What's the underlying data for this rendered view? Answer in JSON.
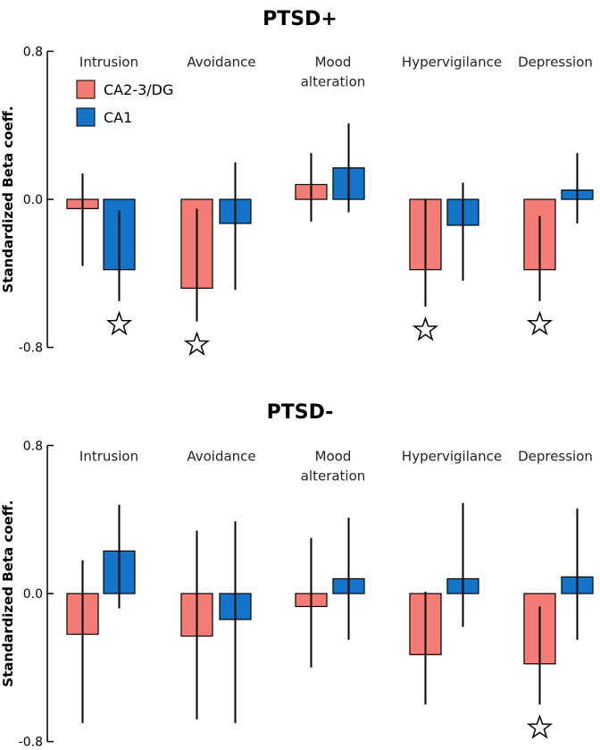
{
  "colors": {
    "ca23dg": "#F47C74",
    "ca1": "#1474C8",
    "axis": "#000000"
  },
  "legend": [
    {
      "label": "CA2-3/DG",
      "color": "#F47C74"
    },
    {
      "label": "CA1",
      "color": "#1474C8"
    }
  ],
  "chart_data": [
    {
      "type": "bar",
      "title": "PTSD+",
      "ylabel": "Standardized Beta coeff.",
      "ylim": [
        -0.8,
        0.8
      ],
      "yticks": [
        "0.8",
        "0.0",
        "-0.8"
      ],
      "ytick_values": [
        0.8,
        0.0,
        -0.8
      ],
      "categories": [
        [
          "Intrusion"
        ],
        [
          "Avoidance"
        ],
        [
          "Mood",
          "alteration"
        ],
        [
          "Hypervigilance"
        ],
        [
          "Depression"
        ]
      ],
      "series": [
        {
          "name": "CA2-3/DG",
          "values": [
            -0.05,
            -0.48,
            0.08,
            -0.38,
            -0.38
          ],
          "ci_low": [
            -0.36,
            -0.66,
            -0.12,
            -0.58,
            -0.55
          ],
          "ci_high": [
            0.14,
            -0.05,
            0.25,
            0.0,
            -0.09
          ]
        },
        {
          "name": "CA1",
          "values": [
            -0.38,
            -0.13,
            0.17,
            -0.14,
            0.05
          ],
          "ci_low": [
            -0.55,
            -0.49,
            -0.07,
            -0.44,
            -0.13
          ],
          "ci_high": [
            -0.06,
            0.2,
            0.41,
            0.09,
            0.25
          ]
        }
      ],
      "significant": [
        {
          "category": 0,
          "series": 1
        },
        {
          "category": 1,
          "series": 0
        },
        {
          "category": 3,
          "series": 0
        },
        {
          "category": 4,
          "series": 0
        }
      ]
    },
    {
      "type": "bar",
      "title": "PTSD-",
      "ylabel": "Standardized Beta coeff.",
      "ylim": [
        -0.8,
        0.8
      ],
      "yticks": [
        "0.8",
        "0.0",
        "-0.8"
      ],
      "ytick_values": [
        0.8,
        0.0,
        -0.8
      ],
      "categories": [
        [
          "Intrusion"
        ],
        [
          "Avoidance"
        ],
        [
          "Mood",
          "alteration"
        ],
        [
          "Hypervigilance"
        ],
        [
          "Depression"
        ]
      ],
      "series": [
        {
          "name": "CA2-3/DG",
          "values": [
            -0.22,
            -0.23,
            -0.07,
            -0.33,
            -0.38
          ],
          "ci_low": [
            -0.7,
            -0.68,
            -0.4,
            -0.6,
            -0.6
          ],
          "ci_high": [
            0.18,
            0.34,
            0.3,
            0.01,
            -0.07
          ]
        },
        {
          "name": "CA1",
          "values": [
            0.23,
            -0.14,
            0.08,
            0.08,
            0.09
          ],
          "ci_low": [
            -0.08,
            -0.7,
            -0.25,
            -0.18,
            -0.25
          ],
          "ci_high": [
            0.48,
            0.39,
            0.41,
            0.49,
            0.46
          ]
        }
      ],
      "significant": [
        {
          "category": 4,
          "series": 0
        }
      ]
    }
  ]
}
